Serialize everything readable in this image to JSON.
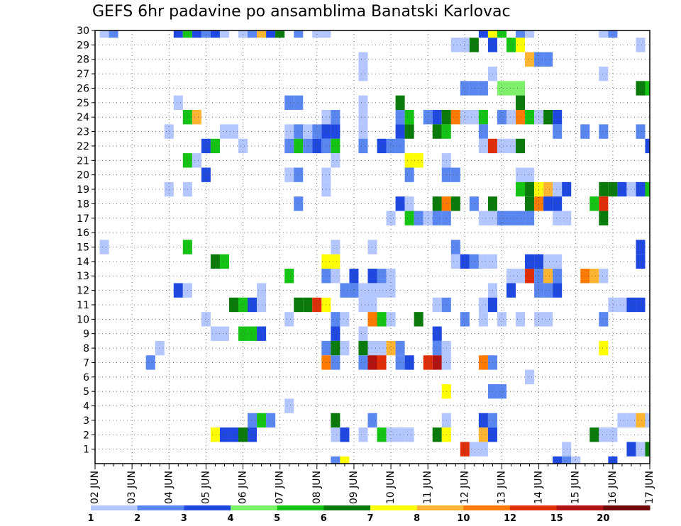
{
  "chart_data": {
    "type": "heatmap",
    "title": "GEFS 6hr padavine po ansamblima Banatski Karlovac",
    "xlabel": "",
    "ylabel": "",
    "x_ticks": [
      "02 JUN",
      "03 JUN",
      "04 JUN",
      "05 JUN",
      "06 JUN",
      "07 JUN",
      "08 JUN",
      "09 JUN",
      "10 JUN",
      "11 JUN",
      "12 JUN",
      "13 JUN",
      "14 JUN",
      "15 JUN",
      "16 JUN",
      "17 JUN"
    ],
    "y_ticks": [
      1,
      2,
      3,
      4,
      5,
      6,
      7,
      8,
      9,
      10,
      11,
      12,
      13,
      14,
      15,
      16,
      17,
      18,
      19,
      20,
      21,
      22,
      23,
      24,
      25,
      26,
      27,
      28,
      29,
      30
    ],
    "xlim": [
      0,
      60
    ],
    "ylim": [
      0,
      30
    ],
    "grid": true,
    "legend_position": "bottom",
    "colorbar": {
      "labels": [
        "1",
        "2",
        "3",
        "4",
        "5",
        "6",
        "7",
        "8",
        "10",
        "12",
        "15",
        "20"
      ],
      "colors": [
        "#b3c6ff",
        "#5a86f0",
        "#1f48e0",
        "#7ff06b",
        "#15c315",
        "#0a7a0a",
        "#ffff00",
        "#ffb531",
        "#ff7a00",
        "#e02e08",
        "#b31212",
        "#6e0a0a"
      ]
    },
    "cells_note": "each cell: [time step index (6h steps from 02 JUN 00z), ensemble member, color class]",
    "cells": [
      [
        1,
        30,
        0
      ],
      [
        2,
        30,
        1
      ],
      [
        9,
        30,
        2
      ],
      [
        10,
        30,
        4
      ],
      [
        11,
        30,
        2
      ],
      [
        12,
        30,
        1
      ],
      [
        13,
        30,
        2
      ],
      [
        14,
        30,
        0
      ],
      [
        16,
        30,
        0
      ],
      [
        17,
        30,
        1
      ],
      [
        18,
        30,
        7
      ],
      [
        19,
        30,
        2
      ],
      [
        20,
        30,
        5
      ],
      [
        22,
        30,
        1
      ],
      [
        24,
        30,
        0
      ],
      [
        25,
        30,
        0
      ],
      [
        42,
        30,
        2
      ],
      [
        43,
        30,
        6
      ],
      [
        44,
        30,
        4
      ],
      [
        46,
        30,
        1
      ],
      [
        47,
        30,
        0
      ],
      [
        55,
        30,
        0
      ],
      [
        56,
        30,
        1
      ],
      [
        39,
        29,
        0
      ],
      [
        40,
        29,
        0
      ],
      [
        41,
        29,
        5
      ],
      [
        43,
        29,
        2
      ],
      [
        45,
        29,
        4
      ],
      [
        46,
        29,
        6
      ],
      [
        59,
        29,
        0
      ],
      [
        29,
        28,
        0
      ],
      [
        47,
        28,
        7
      ],
      [
        48,
        28,
        1
      ],
      [
        49,
        28,
        1
      ],
      [
        29,
        27,
        0
      ],
      [
        43,
        27,
        0
      ],
      [
        55,
        27,
        0
      ],
      [
        40,
        26,
        1
      ],
      [
        41,
        26,
        1
      ],
      [
        42,
        26,
        1
      ],
      [
        44,
        26,
        3
      ],
      [
        45,
        26,
        3
      ],
      [
        46,
        26,
        3
      ],
      [
        59,
        26,
        5
      ],
      [
        60,
        26,
        4
      ],
      [
        9,
        25,
        0
      ],
      [
        21,
        25,
        1
      ],
      [
        22,
        25,
        1
      ],
      [
        29,
        25,
        0
      ],
      [
        33,
        25,
        5
      ],
      [
        46,
        25,
        5
      ],
      [
        10,
        24,
        4
      ],
      [
        11,
        24,
        7
      ],
      [
        25,
        24,
        0
      ],
      [
        26,
        24,
        1
      ],
      [
        29,
        24,
        0
      ],
      [
        33,
        24,
        1
      ],
      [
        34,
        24,
        4
      ],
      [
        36,
        24,
        1
      ],
      [
        37,
        24,
        2
      ],
      [
        38,
        24,
        5
      ],
      [
        39,
        24,
        8
      ],
      [
        40,
        24,
        0
      ],
      [
        41,
        24,
        0
      ],
      [
        42,
        24,
        4
      ],
      [
        44,
        24,
        1
      ],
      [
        45,
        24,
        0
      ],
      [
        46,
        24,
        8
      ],
      [
        47,
        24,
        4
      ],
      [
        48,
        24,
        0
      ],
      [
        49,
        24,
        5
      ],
      [
        50,
        24,
        2
      ],
      [
        8,
        23,
        0
      ],
      [
        14,
        23,
        0
      ],
      [
        15,
        23,
        0
      ],
      [
        21,
        23,
        0
      ],
      [
        22,
        23,
        1
      ],
      [
        23,
        23,
        0
      ],
      [
        24,
        23,
        1
      ],
      [
        25,
        23,
        2
      ],
      [
        26,
        23,
        2
      ],
      [
        29,
        23,
        0
      ],
      [
        33,
        23,
        2
      ],
      [
        34,
        23,
        5
      ],
      [
        37,
        23,
        5
      ],
      [
        38,
        23,
        4
      ],
      [
        42,
        23,
        1
      ],
      [
        50,
        23,
        1
      ],
      [
        53,
        23,
        1
      ],
      [
        55,
        23,
        1
      ],
      [
        59,
        23,
        1
      ],
      [
        12,
        22,
        2
      ],
      [
        13,
        22,
        4
      ],
      [
        16,
        22,
        0
      ],
      [
        21,
        22,
        1
      ],
      [
        22,
        22,
        4
      ],
      [
        23,
        22,
        1
      ],
      [
        24,
        22,
        2
      ],
      [
        25,
        22,
        1
      ],
      [
        26,
        22,
        4
      ],
      [
        29,
        22,
        1
      ],
      [
        31,
        22,
        2
      ],
      [
        32,
        22,
        1
      ],
      [
        33,
        22,
        1
      ],
      [
        42,
        22,
        0
      ],
      [
        43,
        22,
        9
      ],
      [
        44,
        22,
        0
      ],
      [
        45,
        22,
        0
      ],
      [
        46,
        22,
        5
      ],
      [
        60,
        22,
        2
      ],
      [
        10,
        21,
        4
      ],
      [
        11,
        21,
        0
      ],
      [
        26,
        21,
        0
      ],
      [
        34,
        21,
        6
      ],
      [
        35,
        21,
        6
      ],
      [
        38,
        21,
        0
      ],
      [
        12,
        20,
        2
      ],
      [
        21,
        20,
        0
      ],
      [
        22,
        20,
        1
      ],
      [
        25,
        20,
        0
      ],
      [
        34,
        20,
        1
      ],
      [
        38,
        20,
        1
      ],
      [
        39,
        20,
        1
      ],
      [
        46,
        20,
        0
      ],
      [
        47,
        20,
        0
      ],
      [
        8,
        19,
        0
      ],
      [
        10,
        19,
        0
      ],
      [
        25,
        19,
        0
      ],
      [
        46,
        19,
        4
      ],
      [
        47,
        19,
        5
      ],
      [
        48,
        19,
        6
      ],
      [
        49,
        19,
        7
      ],
      [
        50,
        19,
        0
      ],
      [
        51,
        19,
        2
      ],
      [
        55,
        19,
        5
      ],
      [
        56,
        19,
        5
      ],
      [
        57,
        19,
        2
      ],
      [
        58,
        19,
        0
      ],
      [
        59,
        19,
        2
      ],
      [
        60,
        19,
        4
      ],
      [
        22,
        18,
        1
      ],
      [
        33,
        18,
        2
      ],
      [
        34,
        18,
        0
      ],
      [
        37,
        18,
        5
      ],
      [
        38,
        18,
        8
      ],
      [
        39,
        18,
        5
      ],
      [
        41,
        18,
        1
      ],
      [
        43,
        18,
        5
      ],
      [
        47,
        18,
        5
      ],
      [
        48,
        18,
        8
      ],
      [
        49,
        18,
        2
      ],
      [
        50,
        18,
        2
      ],
      [
        54,
        18,
        4
      ],
      [
        55,
        18,
        9
      ],
      [
        32,
        17,
        0
      ],
      [
        34,
        17,
        4
      ],
      [
        35,
        17,
        1
      ],
      [
        36,
        17,
        0
      ],
      [
        37,
        17,
        1
      ],
      [
        38,
        17,
        1
      ],
      [
        42,
        17,
        0
      ],
      [
        43,
        17,
        0
      ],
      [
        44,
        17,
        1
      ],
      [
        45,
        17,
        1
      ],
      [
        46,
        17,
        1
      ],
      [
        47,
        17,
        1
      ],
      [
        50,
        17,
        0
      ],
      [
        51,
        17,
        0
      ],
      [
        55,
        17,
        5
      ],
      [
        1,
        15,
        0
      ],
      [
        10,
        15,
        4
      ],
      [
        26,
        15,
        0
      ],
      [
        30,
        15,
        0
      ],
      [
        39,
        15,
        1
      ],
      [
        59,
        15,
        2
      ],
      [
        13,
        14,
        5
      ],
      [
        14,
        14,
        4
      ],
      [
        25,
        14,
        6
      ],
      [
        26,
        14,
        6
      ],
      [
        39,
        14,
        0
      ],
      [
        40,
        14,
        2
      ],
      [
        41,
        14,
        1
      ],
      [
        42,
        14,
        0
      ],
      [
        43,
        14,
        0
      ],
      [
        47,
        14,
        2
      ],
      [
        48,
        14,
        2
      ],
      [
        49,
        14,
        0
      ],
      [
        50,
        14,
        0
      ],
      [
        59,
        14,
        2
      ],
      [
        21,
        13,
        4
      ],
      [
        25,
        13,
        1
      ],
      [
        26,
        13,
        0
      ],
      [
        28,
        13,
        2
      ],
      [
        30,
        13,
        2
      ],
      [
        31,
        13,
        1
      ],
      [
        32,
        13,
        0
      ],
      [
        45,
        13,
        0
      ],
      [
        46,
        13,
        0
      ],
      [
        47,
        13,
        9
      ],
      [
        48,
        13,
        1
      ],
      [
        49,
        13,
        7
      ],
      [
        50,
        13,
        1
      ],
      [
        53,
        13,
        8
      ],
      [
        54,
        13,
        7
      ],
      [
        55,
        13,
        0
      ],
      [
        9,
        12,
        2
      ],
      [
        10,
        12,
        0
      ],
      [
        18,
        12,
        0
      ],
      [
        27,
        12,
        1
      ],
      [
        28,
        12,
        1
      ],
      [
        29,
        12,
        0
      ],
      [
        30,
        12,
        0
      ],
      [
        31,
        12,
        0
      ],
      [
        32,
        12,
        0
      ],
      [
        43,
        12,
        0
      ],
      [
        45,
        12,
        2
      ],
      [
        48,
        12,
        1
      ],
      [
        49,
        12,
        1
      ],
      [
        50,
        12,
        2
      ],
      [
        15,
        11,
        5
      ],
      [
        16,
        11,
        4
      ],
      [
        17,
        11,
        2
      ],
      [
        18,
        11,
        0
      ],
      [
        22,
        11,
        5
      ],
      [
        23,
        11,
        5
      ],
      [
        24,
        11,
        9
      ],
      [
        25,
        11,
        6
      ],
      [
        29,
        11,
        0
      ],
      [
        30,
        11,
        0
      ],
      [
        37,
        11,
        0
      ],
      [
        38,
        11,
        1
      ],
      [
        42,
        11,
        0
      ],
      [
        43,
        11,
        2
      ],
      [
        56,
        11,
        0
      ],
      [
        57,
        11,
        0
      ],
      [
        58,
        11,
        2
      ],
      [
        59,
        11,
        2
      ],
      [
        12,
        10,
        0
      ],
      [
        21,
        10,
        0
      ],
      [
        26,
        10,
        1
      ],
      [
        27,
        10,
        0
      ],
      [
        30,
        10,
        8
      ],
      [
        31,
        10,
        4
      ],
      [
        32,
        10,
        0
      ],
      [
        35,
        10,
        5
      ],
      [
        40,
        10,
        1
      ],
      [
        42,
        10,
        0
      ],
      [
        44,
        10,
        0
      ],
      [
        46,
        10,
        0
      ],
      [
        48,
        10,
        0
      ],
      [
        49,
        10,
        0
      ],
      [
        55,
        10,
        1
      ],
      [
        13,
        9,
        0
      ],
      [
        14,
        9,
        0
      ],
      [
        16,
        9,
        4
      ],
      [
        17,
        9,
        4
      ],
      [
        18,
        9,
        2
      ],
      [
        26,
        9,
        2
      ],
      [
        29,
        9,
        0
      ],
      [
        37,
        9,
        2
      ],
      [
        7,
        8,
        0
      ],
      [
        25,
        8,
        1
      ],
      [
        26,
        8,
        5
      ],
      [
        27,
        8,
        0
      ],
      [
        29,
        8,
        5
      ],
      [
        30,
        8,
        0
      ],
      [
        31,
        8,
        0
      ],
      [
        32,
        8,
        7
      ],
      [
        33,
        8,
        1
      ],
      [
        37,
        8,
        1
      ],
      [
        38,
        8,
        0
      ],
      [
        55,
        8,
        6
      ],
      [
        6,
        7,
        1
      ],
      [
        25,
        7,
        8
      ],
      [
        26,
        7,
        1
      ],
      [
        29,
        7,
        1
      ],
      [
        30,
        7,
        10
      ],
      [
        31,
        7,
        9
      ],
      [
        33,
        7,
        1
      ],
      [
        34,
        7,
        2
      ],
      [
        36,
        7,
        9
      ],
      [
        37,
        7,
        10
      ],
      [
        38,
        7,
        0
      ],
      [
        42,
        7,
        8
      ],
      [
        43,
        7,
        1
      ],
      [
        47,
        6,
        0
      ],
      [
        38,
        5,
        6
      ],
      [
        43,
        5,
        1
      ],
      [
        44,
        5,
        1
      ],
      [
        21,
        4,
        0
      ],
      [
        17,
        3,
        1
      ],
      [
        18,
        3,
        4
      ],
      [
        19,
        3,
        1
      ],
      [
        26,
        3,
        5
      ],
      [
        30,
        3,
        1
      ],
      [
        38,
        3,
        0
      ],
      [
        42,
        3,
        2
      ],
      [
        43,
        3,
        1
      ],
      [
        57,
        3,
        0
      ],
      [
        58,
        3,
        0
      ],
      [
        59,
        3,
        7
      ],
      [
        60,
        3,
        0
      ],
      [
        13,
        2,
        6
      ],
      [
        14,
        2,
        2
      ],
      [
        15,
        2,
        2
      ],
      [
        16,
        2,
        5
      ],
      [
        17,
        2,
        2
      ],
      [
        26,
        2,
        0
      ],
      [
        27,
        2,
        2
      ],
      [
        29,
        2,
        0
      ],
      [
        31,
        2,
        4
      ],
      [
        32,
        2,
        0
      ],
      [
        33,
        2,
        0
      ],
      [
        34,
        2,
        0
      ],
      [
        37,
        2,
        5
      ],
      [
        38,
        2,
        6
      ],
      [
        42,
        2,
        7
      ],
      [
        43,
        2,
        2
      ],
      [
        54,
        2,
        5
      ],
      [
        55,
        2,
        0
      ],
      [
        56,
        2,
        0
      ],
      [
        40,
        1,
        9
      ],
      [
        41,
        1,
        0
      ],
      [
        42,
        1,
        0
      ],
      [
        51,
        1,
        0
      ],
      [
        58,
        1,
        2
      ],
      [
        59,
        1,
        0
      ],
      [
        60,
        1,
        5
      ],
      [
        61,
        1,
        2
      ],
      [
        26,
        0,
        1
      ],
      [
        27,
        0,
        6
      ],
      [
        50,
        0,
        2
      ],
      [
        51,
        0,
        1
      ],
      [
        52,
        0,
        0
      ],
      [
        56,
        0,
        2
      ]
    ]
  }
}
